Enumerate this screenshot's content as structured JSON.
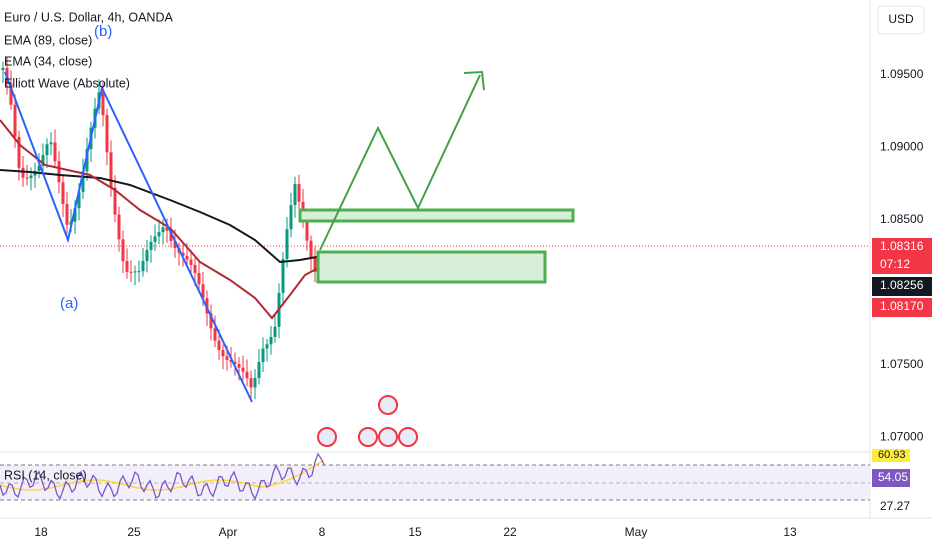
{
  "legend": {
    "symbol": "Euro / U.S. Dollar, 4h, OANDA",
    "ema89": "EMA (89, close)",
    "ema34": "EMA (34, close)",
    "elliott": "Elliott Wave (Absolute)"
  },
  "wave_labels": {
    "b": "(b)",
    "a": "(a)"
  },
  "currency_button": "USD",
  "price_axis": [
    "1.09500",
    "1.09000",
    "1.08500",
    "1.07500",
    "1.07000"
  ],
  "badges": {
    "last": "1.08316",
    "countdown": "07:12",
    "ema": "1.08256",
    "ema2": "1.08170"
  },
  "rsi": {
    "title": "RSI (14, close)",
    "upper": "60.93",
    "value": "54.05",
    "lower": "27.27"
  },
  "time_axis": [
    "18",
    "25",
    "Apr",
    "8",
    "15",
    "22",
    "May",
    "13"
  ]
}
